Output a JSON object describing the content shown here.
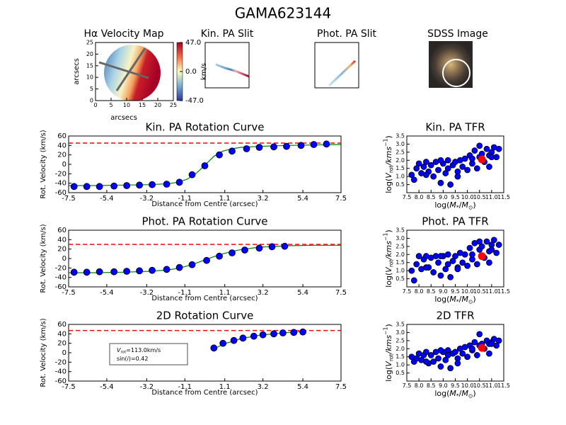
{
  "title": "GAMA623144",
  "velocity_map": {
    "title": "Hα Velocity Map",
    "xlabel": "arcsecs",
    "ylabel": "arcsecs",
    "xlim": [
      0,
      25
    ],
    "ylim": [
      0,
      25
    ],
    "xticks": [
      0,
      5,
      10,
      15,
      20,
      25
    ],
    "yticks": [
      0,
      5,
      10,
      15,
      20,
      25
    ],
    "colorbar": {
      "label": "km/s",
      "lim": [
        -47,
        47
      ],
      "ticks": [
        {
          "value": 47,
          "label": "47.0"
        },
        {
          "value": 0,
          "label": "0.0"
        },
        {
          "value": -47,
          "label": "-47.0"
        }
      ]
    }
  },
  "kin_slit": {
    "title": "Kin. PA Slit"
  },
  "phot_slit": {
    "title": "Phot. PA Slit"
  },
  "sdss": {
    "title": "SDSS Image"
  },
  "chart_data": [
    {
      "type": "line",
      "title": "Kin. PA Rotation Curve",
      "xlabel": "Distance from Centre (arcsec)",
      "ylabel": "Rot. Velocity (km/s)",
      "xlim": [
        -7.5,
        7.5
      ],
      "ylim": [
        -60,
        60
      ],
      "xticks": [
        -7.5,
        -5.4,
        -3.2,
        -1.1,
        1.1,
        3.2,
        5.4,
        7.5
      ],
      "yticks": [
        -60,
        -40,
        -20,
        0,
        20,
        40,
        60
      ],
      "points": {
        "color": "#0000ff",
        "x": [
          -7.2,
          -6.5,
          -5.8,
          -5.0,
          -4.3,
          -3.6,
          -2.9,
          -2.1,
          -1.4,
          -0.7,
          0.0,
          0.8,
          1.5,
          2.3,
          3.0,
          3.8,
          4.5,
          5.3,
          6.0,
          6.7
        ],
        "values": [
          -47,
          -47,
          -47,
          -46,
          -45,
          -44,
          -43,
          -42,
          -38,
          -22,
          -3,
          20,
          28,
          33,
          36,
          37,
          38,
          40,
          42,
          43
        ]
      },
      "model": {
        "color": "#008000",
        "x": [
          -7.5,
          -6,
          -4.5,
          -3,
          -2,
          -1.5,
          -1,
          -0.5,
          0,
          0.5,
          1,
          1.5,
          2,
          3,
          4.5,
          6,
          7.5
        ],
        "values": [
          -45,
          -45,
          -44,
          -43,
          -41,
          -38,
          -32,
          -20,
          -2,
          17,
          28,
          33,
          36,
          38,
          40,
          41,
          42
        ]
      },
      "reference_line": {
        "value": 45,
        "color": "#ff0000"
      }
    },
    {
      "type": "line",
      "title": "Phot. PA Rotation Curve",
      "xlabel": "Distance from Centre (arcsec)",
      "ylabel": "Rot. Velocity (km/s)",
      "xlim": [
        -7.5,
        7.5
      ],
      "ylim": [
        -60,
        60
      ],
      "xticks": [
        -7.5,
        -5.4,
        -3.2,
        -1.1,
        1.1,
        3.2,
        5.4,
        7.5
      ],
      "yticks": [
        -60,
        -40,
        -20,
        0,
        20,
        40,
        60
      ],
      "points": {
        "color": "#0000ff",
        "x": [
          -7.2,
          -6.5,
          -5.8,
          -5.0,
          -4.3,
          -3.6,
          -2.9,
          -2.1,
          -1.4,
          -0.7,
          0.1,
          0.8,
          1.5,
          2.2,
          3.0,
          3.7,
          4.4
        ],
        "values": [
          -29,
          -29,
          -28,
          -28,
          -27,
          -26,
          -25,
          -23,
          -19,
          -13,
          -4,
          5,
          12,
          18,
          22,
          25,
          26
        ]
      },
      "model": {
        "color": "#008000",
        "x": [
          -7.5,
          -6,
          -4.5,
          -3,
          -2,
          -1.5,
          -1,
          -0.5,
          0,
          0.5,
          1,
          1.5,
          2,
          3,
          4.5,
          6,
          7.5
        ],
        "values": [
          -30,
          -30,
          -29,
          -27,
          -24,
          -21,
          -16,
          -10,
          -3,
          4,
          10,
          15,
          19,
          24,
          27,
          28,
          28
        ]
      },
      "reference_line": {
        "value": 30,
        "color": "#ff0000"
      }
    },
    {
      "type": "line",
      "title": "2D Rotation Curve",
      "xlabel": "Distance from Centre (arcsec)",
      "ylabel": "Rot. Velocity (km/s)",
      "xlim": [
        -7.5,
        7.5
      ],
      "ylim": [
        -60,
        60
      ],
      "xticks": [
        -7.5,
        -5.4,
        -3.2,
        -1.1,
        1.1,
        3.2,
        5.4,
        7.5
      ],
      "yticks": [
        -60,
        -40,
        -20,
        0,
        20,
        40,
        60
      ],
      "points": {
        "color": "#0000ff",
        "x": [
          0.5,
          1.0,
          1.6,
          2.1,
          2.7,
          3.2,
          3.8,
          4.3,
          4.9,
          5.4
        ],
        "values": [
          10,
          20,
          26,
          31,
          35,
          38,
          40,
          42,
          43,
          44
        ]
      },
      "model": {
        "color": "#008000",
        "x": [
          0.5,
          1,
          2,
          3,
          4,
          5,
          5.5
        ],
        "values": [
          8,
          18,
          30,
          37,
          41,
          44,
          45
        ]
      },
      "reference_line": {
        "value": 47,
        "color": "#ff0000"
      },
      "annotation": {
        "lines": [
          [
            {
              "text": "V",
              "style": "italic"
            },
            {
              "text": "rot",
              "style": "sub"
            },
            {
              "text": "=113.0km/s"
            }
          ],
          [
            {
              "text": "sin("
            },
            {
              "text": "i",
              "style": "italic"
            },
            {
              "text": ")=0.42"
            }
          ]
        ]
      }
    },
    {
      "type": "scatter",
      "title": "Kin. PA TFR",
      "xlabel": [
        {
          "text": "log("
        },
        {
          "text": "M",
          "style": "italic"
        },
        {
          "text": "*",
          "style": "sub"
        },
        {
          "text": "/"
        },
        {
          "text": "M",
          "style": "italic"
        },
        {
          "text": "⊙",
          "style": "sub"
        },
        {
          "text": ")"
        }
      ],
      "ylabel": [
        {
          "text": "log("
        },
        {
          "text": "V",
          "style": "italic"
        },
        {
          "text": "rot",
          "style": "sub"
        },
        {
          "text": "/kms",
          "style": "italic"
        },
        {
          "text": "−1",
          "style": "sup"
        },
        {
          "text": ")"
        }
      ],
      "xlim": [
        7.5,
        11.5
      ],
      "ylim": [
        0,
        3.5
      ],
      "xticks": [
        7.5,
        {
          "value": 8,
          "label": "8.0"
        },
        8.5,
        {
          "value": 9,
          "label": "9.0"
        },
        9.5,
        {
          "value": 10,
          "label": "10.0"
        },
        10.5,
        {
          "value": 11,
          "label": "11.0"
        },
        11.5
      ],
      "yticks": [
        0.5,
        {
          "value": 1,
          "label": "1.0"
        },
        1.5,
        {
          "value": 2,
          "label": "2.0"
        },
        2.5,
        {
          "value": 3,
          "label": "3.0"
        },
        3.5
      ],
      "points": {
        "color": "#0000ff",
        "x": [
          7.7,
          7.8,
          7.9,
          8.0,
          8.1,
          8.2,
          8.3,
          8.4,
          8.5,
          8.6,
          8.7,
          8.8,
          8.9,
          9.0,
          9.1,
          9.2,
          9.3,
          9.4,
          9.5,
          9.6,
          9.7,
          9.8,
          9.9,
          10.0,
          10.1,
          10.2,
          10.3,
          10.4,
          10.5,
          10.6,
          10.7,
          10.8,
          10.9,
          11.0,
          11.1,
          11.2,
          11.3,
          8.3,
          8.9,
          9.6,
          10.2,
          10.9,
          9.2,
          10.5,
          11.0
        ],
        "values": [
          1.1,
          0.8,
          1.5,
          1.8,
          1.2,
          1.6,
          1.9,
          1.3,
          1.7,
          1.0,
          1.9,
          1.4,
          0.6,
          1.8,
          1.2,
          2.0,
          0.5,
          1.7,
          1.9,
          1.3,
          2.0,
          1.6,
          2.1,
          1.4,
          2.3,
          1.8,
          2.6,
          1.5,
          2.2,
          2.4,
          1.9,
          2.7,
          2.3,
          2.5,
          2.8,
          2.2,
          2.7,
          1.1,
          2.0,
          1.0,
          2.1,
          1.6,
          1.5,
          2.9,
          2.2
        ]
      },
      "highlight": {
        "color": "#ff0000",
        "x": 10.6,
        "value": 2.05
      }
    },
    {
      "type": "scatter",
      "title": "Phot. PA TFR",
      "xlabel": [
        {
          "text": "log("
        },
        {
          "text": "M",
          "style": "italic"
        },
        {
          "text": "*",
          "style": "sub"
        },
        {
          "text": "/"
        },
        {
          "text": "M",
          "style": "italic"
        },
        {
          "text": "⊙",
          "style": "sub"
        },
        {
          "text": ")"
        }
      ],
      "ylabel": [
        {
          "text": "log("
        },
        {
          "text": "V",
          "style": "italic"
        },
        {
          "text": "rot",
          "style": "sub"
        },
        {
          "text": "/kms",
          "style": "italic"
        },
        {
          "text": "−1",
          "style": "sup"
        },
        {
          "text": ")"
        }
      ],
      "xlim": [
        7.5,
        11.5
      ],
      "ylim": [
        0,
        3.5
      ],
      "xticks": [
        7.5,
        {
          "value": 8,
          "label": "8.0"
        },
        8.5,
        {
          "value": 9,
          "label": "9.0"
        },
        9.5,
        {
          "value": 10,
          "label": "10.0"
        },
        10.5,
        {
          "value": 11,
          "label": "11.0"
        },
        11.5
      ],
      "yticks": [
        0.5,
        {
          "value": 1,
          "label": "1.0"
        },
        1.5,
        {
          "value": 2,
          "label": "2.0"
        },
        2.5,
        {
          "value": 3,
          "label": "3.0"
        },
        3.5
      ],
      "points": {
        "color": "#0000ff",
        "x": [
          7.7,
          7.8,
          7.9,
          8.0,
          8.1,
          8.2,
          8.3,
          8.4,
          8.5,
          8.6,
          8.7,
          8.8,
          8.9,
          9.0,
          9.1,
          9.2,
          9.3,
          9.4,
          9.5,
          9.6,
          9.7,
          9.8,
          9.9,
          10.0,
          10.1,
          10.2,
          10.3,
          10.4,
          10.5,
          10.6,
          10.7,
          10.8,
          10.9,
          11.0,
          11.1,
          11.2,
          11.3,
          8.3,
          8.9,
          9.6,
          10.2,
          10.9,
          9.2,
          10.5,
          11.0
        ],
        "values": [
          1.0,
          0.4,
          1.4,
          1.9,
          1.1,
          1.7,
          1.9,
          1.2,
          1.8,
          0.9,
          1.9,
          1.5,
          0.7,
          1.9,
          1.1,
          2.0,
          0.6,
          1.6,
          1.9,
          1.2,
          2.1,
          1.5,
          2.0,
          1.3,
          2.4,
          1.7,
          2.7,
          1.4,
          2.3,
          2.5,
          1.8,
          2.8,
          2.2,
          2.6,
          2.9,
          2.1,
          2.6,
          1.2,
          1.9,
          1.1,
          2.0,
          1.5,
          1.4,
          2.8,
          2.3
        ]
      },
      "highlight": {
        "color": "#ff0000",
        "x": 10.6,
        "value": 1.9
      }
    },
    {
      "type": "scatter",
      "title": "2D TFR",
      "xlabel": [
        {
          "text": "log("
        },
        {
          "text": "M",
          "style": "italic"
        },
        {
          "text": "*",
          "style": "sub"
        },
        {
          "text": "/"
        },
        {
          "text": "M",
          "style": "italic"
        },
        {
          "text": "⊙",
          "style": "sub"
        },
        {
          "text": ")"
        }
      ],
      "ylabel": [
        {
          "text": "log("
        },
        {
          "text": "V",
          "style": "italic"
        },
        {
          "text": "rot",
          "style": "sub"
        },
        {
          "text": "/kms",
          "style": "italic"
        },
        {
          "text": "−1",
          "style": "sup"
        },
        {
          "text": ")"
        }
      ],
      "xlim": [
        7.5,
        11.5
      ],
      "ylim": [
        0,
        3.5
      ],
      "xticks": [
        7.5,
        {
          "value": 8,
          "label": "8.0"
        },
        8.5,
        {
          "value": 9,
          "label": "9.0"
        },
        9.5,
        {
          "value": 10,
          "label": "10.0"
        },
        10.5,
        {
          "value": 11,
          "label": "11.0"
        },
        11.5
      ],
      "yticks": [
        0.5,
        {
          "value": 1,
          "label": "1.0"
        },
        1.5,
        {
          "value": 2,
          "label": "2.0"
        },
        2.5,
        {
          "value": 3,
          "label": "3.0"
        },
        3.5
      ],
      "points": {
        "color": "#0000ff",
        "x": [
          7.7,
          7.8,
          7.9,
          8.0,
          8.1,
          8.2,
          8.3,
          8.4,
          8.5,
          8.6,
          8.7,
          8.8,
          8.9,
          9.0,
          9.1,
          9.2,
          9.3,
          9.4,
          9.5,
          9.6,
          9.7,
          9.8,
          9.9,
          10.0,
          10.1,
          10.2,
          10.3,
          10.4,
          10.5,
          10.6,
          10.7,
          10.8,
          10.9,
          11.0,
          11.1,
          11.2,
          11.3,
          8.3,
          8.9,
          9.6,
          10.2,
          10.9,
          9.2,
          10.5,
          11.0
        ],
        "values": [
          1.5,
          1.2,
          1.4,
          1.7,
          1.3,
          1.6,
          1.8,
          1.1,
          1.6,
          1.2,
          1.8,
          1.4,
          0.9,
          1.8,
          1.3,
          1.9,
          0.8,
          1.7,
          1.8,
          1.4,
          2.0,
          1.7,
          2.1,
          1.5,
          2.2,
          1.9,
          2.4,
          1.6,
          2.2,
          2.3,
          2.0,
          2.5,
          2.3,
          2.4,
          2.6,
          2.2,
          2.5,
          1.2,
          1.9,
          1.1,
          2.0,
          1.7,
          1.6,
          2.9,
          2.3
        ]
      },
      "highlight": {
        "color": "#ff0000",
        "x": 10.6,
        "value": 2.05
      }
    }
  ]
}
